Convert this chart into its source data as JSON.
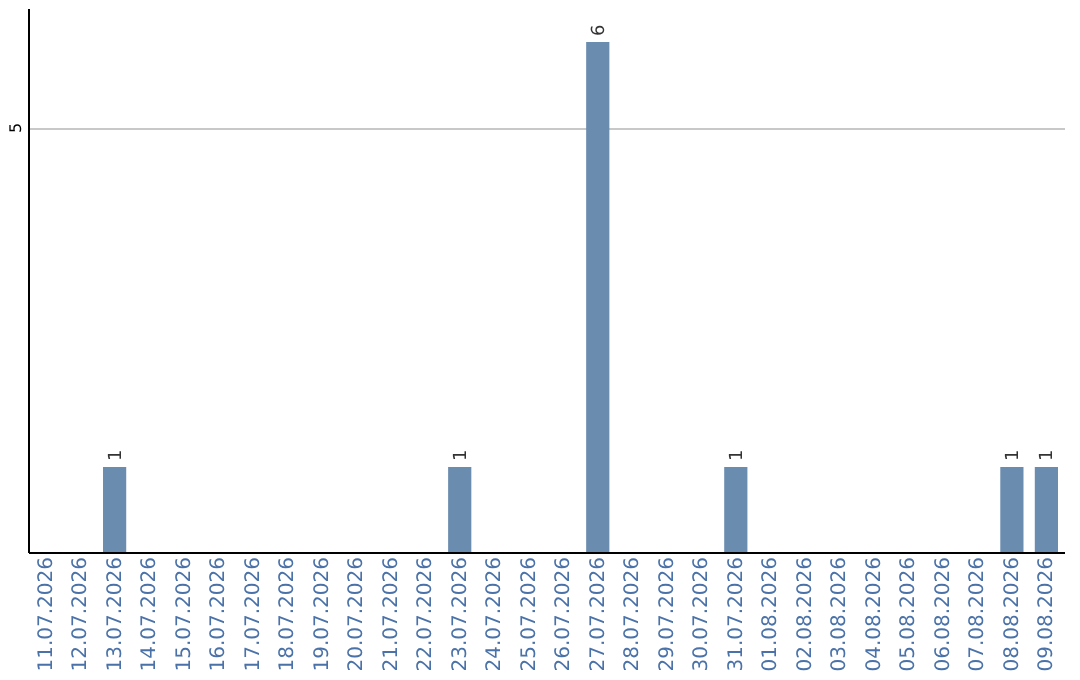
{
  "chart_data": {
    "type": "bar",
    "categories": [
      "11.07.2026",
      "12.07.2026",
      "13.07.2026",
      "14.07.2026",
      "15.07.2026",
      "16.07.2026",
      "17.07.2026",
      "18.07.2026",
      "19.07.2026",
      "20.07.2026",
      "21.07.2026",
      "22.07.2026",
      "23.07.2026",
      "24.07.2026",
      "25.07.2026",
      "26.07.2026",
      "27.07.2026",
      "28.07.2026",
      "29.07.2026",
      "30.07.2026",
      "31.07.2026",
      "01.08.2026",
      "02.08.2026",
      "03.08.2026",
      "04.08.2026",
      "05.08.2026",
      "06.08.2026",
      "07.08.2026",
      "08.08.2026",
      "09.08.2026"
    ],
    "values": [
      0,
      0,
      1,
      0,
      0,
      0,
      0,
      0,
      0,
      0,
      0,
      0,
      1,
      0,
      0,
      0,
      6,
      0,
      0,
      0,
      1,
      0,
      0,
      0,
      0,
      0,
      0,
      0,
      1,
      1
    ],
    "value_labels": [
      null,
      null,
      "1",
      null,
      null,
      null,
      null,
      null,
      null,
      null,
      null,
      null,
      "1",
      null,
      null,
      null,
      "6",
      null,
      null,
      null,
      "1",
      null,
      null,
      null,
      null,
      null,
      null,
      null,
      "1",
      "1"
    ],
    "color": "#6a8caf",
    "ylim": [
      0,
      6.4
    ],
    "yticks": [
      5
    ],
    "grid": "y"
  }
}
